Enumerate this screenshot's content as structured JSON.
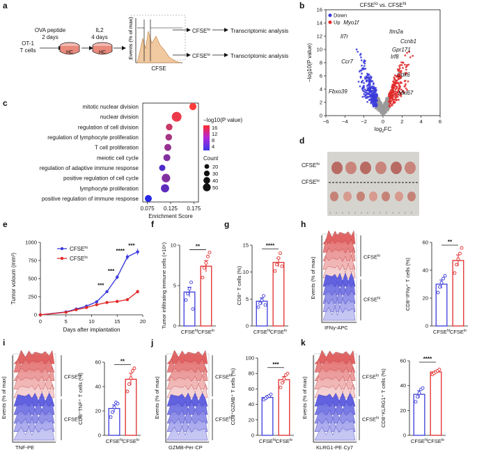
{
  "figure": {
    "panel_letters": [
      "a",
      "b",
      "c",
      "d",
      "e",
      "f",
      "g",
      "h",
      "i",
      "j",
      "k"
    ]
  },
  "panel_a": {
    "start_cells": "OT-1",
    "start_cells_2": "T cells",
    "step1_top": "OVA peptide",
    "step1_bottom": "2 days",
    "step2_top": "IL2",
    "step2_bottom": "4 days",
    "dish_label": "HC",
    "y_label": "Events (% of max)",
    "x_label": "CFSE",
    "hi_label": "CFSE",
    "hi_sup": "hi",
    "lo_label": "CFSE",
    "lo_sup": "lo",
    "analysis_1": "Transcriptomic analysis",
    "analysis_2": "Transcriptomic analysis"
  },
  "panel_b": {
    "title": "CFSE",
    "title_sup_lo": "lo",
    "title_vs": " vs. CFSE",
    "title_sup_hi": "hi",
    "legend": [
      {
        "label": "Down",
        "color": "#3b3bdb"
      },
      {
        "label": "Up",
        "color": "#e02a2a"
      }
    ],
    "x_label": "log",
    "x_sub": "2",
    "x_label_2": "FC",
    "y_label": "−log10(P value)",
    "x_ticks": [
      "−6",
      "−4",
      "−2",
      "0",
      "2",
      "4",
      "6"
    ],
    "y_ticks": [
      "0",
      "2",
      "4",
      "6",
      "8",
      "10",
      "12",
      "14",
      "16"
    ],
    "genes": [
      "Myo1f",
      "Il7r",
      "Ccr7",
      "Fbxo39",
      "Itm2a",
      "Ccnb1",
      "Gpr171",
      "Irf8",
      "Cdk6",
      "Mki67"
    ]
  },
  "panel_c": {
    "x_label": "Enrichment Score",
    "x_ticks": [
      "0.075",
      "0.125",
      "0.175"
    ],
    "legend_title": "−log10(P value)",
    "color_ticks": [
      "16",
      "12",
      "8",
      "4"
    ],
    "count_title": "Count",
    "count_ticks": [
      "20",
      "30",
      "40",
      "50"
    ]
  },
  "panel_d": {
    "label_hi": "CFSE",
    "sup_hi": "hi",
    "label_lo": "CFSE",
    "sup_lo": "lo"
  },
  "panel_e": {
    "y_label": "Tumor voloum (mm³)",
    "x_label": "Days after implantation",
    "x_ticks": [
      "0",
      "5",
      "10",
      "15",
      "20"
    ],
    "y_ticks": [
      "0",
      "250",
      "500",
      "750",
      "1000"
    ],
    "legend_hi": "CFSE",
    "legend_hi_sup": "hi",
    "legend_lo": "CFSE",
    "legend_lo_sup": "lo",
    "significance": [
      "***",
      "***",
      "****",
      "***"
    ]
  },
  "panel_f": {
    "y_label": "Tumor infiltrating immune cells (×10⁶)",
    "y_ticks": [
      "0",
      "5",
      "10"
    ],
    "significance": "**",
    "cat_hi": "CFSE",
    "cat_lo": "CFSE"
  },
  "panel_g": {
    "y_label": "CD8⁺ T cells (%)",
    "y_ticks": [
      "0",
      "5",
      "10",
      "15"
    ],
    "significance": "****"
  },
  "panel_h": {
    "flow_x": "IFNγ-APC",
    "flow_y": "Events (% of max)",
    "group_lo": "CFSE",
    "group_hi": "CFSE",
    "y_label": "CD8⁺IFNγ⁺ T cells (%)",
    "y_ticks": [
      "0",
      "20",
      "40",
      "60"
    ],
    "significance": "**"
  },
  "panel_i": {
    "flow_x": "TNF-PE",
    "flow_y": "Events (% of max)",
    "y_label": "CD8⁺TNF⁺ T cells (%)",
    "y_ticks": [
      "0",
      "20",
      "40",
      "60"
    ],
    "significance": "**"
  },
  "panel_j": {
    "flow_x": "GZMB-Per·CP",
    "flow_y": "Events (% of max)",
    "y_label": "CD8⁺GZMB⁺ T cells (%)",
    "y_ticks": [
      "0",
      "20",
      "40",
      "60",
      "80",
      "100"
    ],
    "significance": "***"
  },
  "panel_k": {
    "flow_x": "KLRG1-PE·Cy7",
    "flow_y": "Events (% of max)",
    "y_label": "CD8⁺KLRG1⁺ T cells (%)",
    "y_ticks": [
      "0",
      "20",
      "40",
      "60"
    ],
    "significance": "****"
  },
  "chart_data": [
    {
      "id": "c",
      "type": "scatter",
      "title": "",
      "xlabel": "Enrichment Score",
      "xlim": [
        0.065,
        0.185
      ],
      "categories": [
        "mitotic nuclear division",
        "nuclear division",
        "regulation of cell division",
        "regulation of lymphocyte proliferation",
        "T cell proliferation",
        "meiotic cell cycle",
        "regulation of adaptive immune response",
        "positive regulation of cell cycle",
        "lymphocyte proliferation",
        "positive regulation of immune response"
      ],
      "highlighted": [
        "T cell proliferation",
        "positive regulation of cell cycle",
        "lymphocyte proliferation"
      ],
      "values": [
        0.173,
        0.138,
        0.122,
        0.121,
        0.119,
        0.117,
        0.107,
        0.115,
        0.113,
        0.077
      ],
      "neglogp": [
        16,
        15,
        13,
        11,
        10,
        9,
        6,
        9,
        7,
        4
      ],
      "count": [
        25,
        40,
        22,
        22,
        24,
        24,
        20,
        33,
        31,
        24
      ]
    },
    {
      "id": "e",
      "type": "line",
      "xlabel": "Days after implantation",
      "ylabel": "Tumor voloum (mm³)",
      "xlim": [
        0,
        20
      ],
      "ylim": [
        0,
        1000
      ],
      "series": [
        {
          "name": "CFSEhi",
          "color": "#3b3bdb",
          "x": [
            0,
            5,
            7,
            9,
            11,
            13,
            15,
            17,
            19
          ],
          "y": [
            0,
            40,
            80,
            120,
            180,
            320,
            520,
            800,
            870
          ],
          "err": [
            0,
            5,
            8,
            10,
            15,
            20,
            30,
            40,
            45
          ]
        },
        {
          "name": "CFSElo",
          "color": "#e02a2a",
          "x": [
            0,
            5,
            7,
            9,
            11,
            13,
            15,
            17,
            19
          ],
          "y": [
            0,
            35,
            70,
            100,
            140,
            170,
            185,
            210,
            320
          ],
          "err": [
            0,
            5,
            6,
            8,
            10,
            12,
            15,
            20,
            25
          ]
        }
      ],
      "significance_x": [
        13,
        15,
        17,
        19
      ]
    },
    {
      "id": "f",
      "type": "bar",
      "ylabel": "Tumor infiltrating immune cells (×10⁶)",
      "ylim": [
        0,
        10
      ],
      "categories": [
        "CFSEhi",
        "CFSElo"
      ],
      "values": [
        4.2,
        7.4
      ],
      "err": [
        0.6,
        0.7
      ],
      "points": [
        [
          3.2,
          4.0,
          4.6,
          5.4,
          2.1
        ],
        [
          6.0,
          7.2,
          7.8,
          8.6,
          9.1
        ]
      ]
    },
    {
      "id": "g",
      "type": "bar",
      "ylabel": "CD8⁺ T cells (%)",
      "ylim": [
        0,
        15
      ],
      "categories": [
        "CFSEhi",
        "CFSElo"
      ],
      "values": [
        4.6,
        11.8
      ],
      "err": [
        0.6,
        0.8
      ],
      "points": [
        [
          3.5,
          4.2,
          4.8,
          5.6,
          3.9
        ],
        [
          10.2,
          11.4,
          12.6,
          13.5,
          11.1
        ]
      ]
    },
    {
      "id": "h",
      "type": "bar",
      "ylabel": "CD8⁺IFNγ⁺ T cells (%)",
      "ylim": [
        0,
        60
      ],
      "categories": [
        "CFSEhi",
        "CFSElo"
      ],
      "values": [
        30,
        47
      ],
      "err": [
        3,
        4
      ],
      "points": [
        [
          24,
          28,
          31,
          34,
          36
        ],
        [
          38,
          44,
          48,
          52,
          56
        ]
      ]
    },
    {
      "id": "i",
      "type": "bar",
      "ylabel": "CD8⁺TNF⁺ T cells (%)",
      "ylim": [
        0,
        60
      ],
      "categories": [
        "CFSEhi",
        "CFSElo"
      ],
      "values": [
        22,
        46
      ],
      "err": [
        3,
        5
      ],
      "points": [
        [
          15,
          19,
          23,
          27,
          26
        ],
        [
          36,
          42,
          47,
          53,
          55
        ]
      ]
    },
    {
      "id": "j",
      "type": "bar",
      "ylabel": "CD8⁺GZMB⁺ T cells (%)",
      "ylim": [
        0,
        100
      ],
      "categories": [
        "CFSEhi",
        "CFSElo"
      ],
      "values": [
        49,
        72
      ],
      "err": [
        2,
        4
      ],
      "points": [
        [
          46,
          48,
          50,
          51,
          53
        ],
        [
          62,
          68,
          73,
          78,
          80
        ]
      ]
    },
    {
      "id": "k",
      "type": "bar",
      "ylabel": "CD8⁺KLRG1⁺ T cells (%)",
      "ylim": [
        0,
        60
      ],
      "categories": [
        "CFSEhi",
        "CFSElo"
      ],
      "values": [
        33,
        51
      ],
      "err": [
        3,
        1
      ],
      "points": [
        [
          27,
          31,
          34,
          37,
          38
        ],
        [
          49,
          50,
          51,
          52,
          53
        ]
      ]
    }
  ]
}
